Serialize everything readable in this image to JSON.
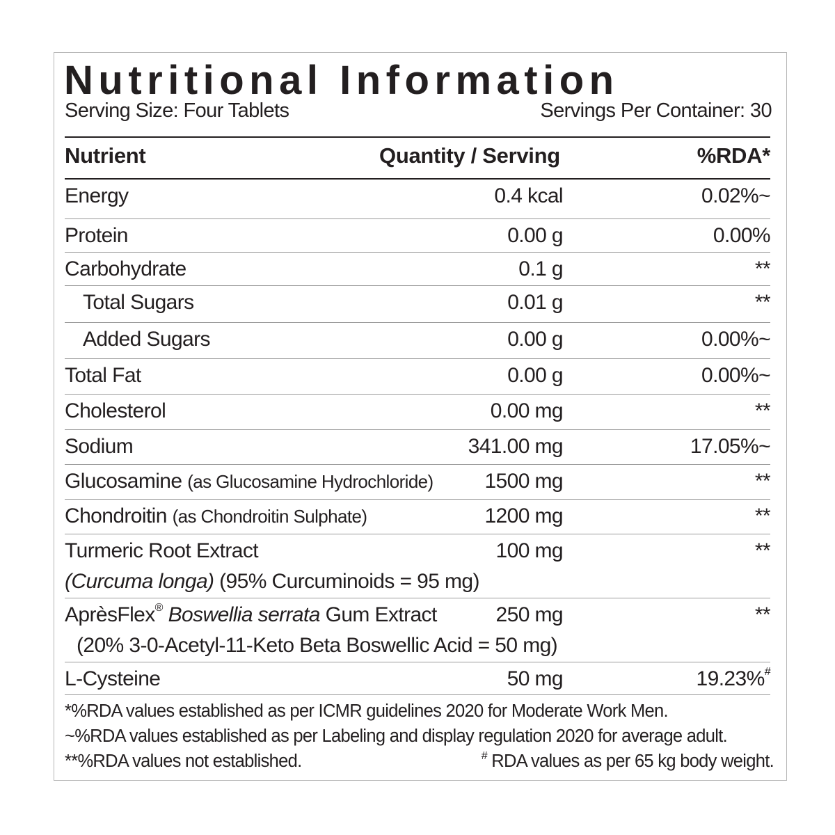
{
  "title": "Nutritional Information",
  "serving_size": "Serving Size: Four Tablets",
  "servings_per_container": "Servings Per Container: 30",
  "table": {
    "headers": [
      "Nutrient",
      "Quantity / Serving",
      "%RDA*"
    ],
    "rows": [
      {
        "nutrient": "Energy",
        "quantity": "0.4 kcal",
        "rda": "0.02%~"
      },
      {
        "nutrient": "Protein",
        "quantity": "0.00 g",
        "rda": "0.00%"
      },
      {
        "nutrient": "Carbohydrate",
        "quantity": "0.1 g",
        "rda": "**"
      },
      {
        "nutrient": "Total Sugars",
        "quantity": "0.01 g",
        "rda": "**"
      },
      {
        "nutrient": "Added Sugars",
        "quantity": "0.00 g",
        "rda": "0.00%~"
      },
      {
        "nutrient": "Total Fat",
        "quantity": "0.00 g",
        "rda": "0.00%~"
      },
      {
        "nutrient": "Cholesterol",
        "quantity": "0.00 mg",
        "rda": "**"
      },
      {
        "nutrient": "Sodium",
        "quantity": "341.00 mg",
        "rda": "17.05%~"
      },
      {
        "nutrient": "Glucosamine",
        "note": "(as Glucosamine Hydrochloride)",
        "quantity": "1500 mg",
        "rda": "**"
      },
      {
        "nutrient": "Chondroitin",
        "note": "(as Chondroitin Sulphate)",
        "quantity": "1200 mg",
        "rda": "**"
      },
      {
        "nutrient": "Turmeric Root Extract",
        "species": "(Curcuma longa)",
        "detail": "(95% Curcuminoids = 95 mg)",
        "quantity": "100 mg",
        "rda": "**"
      },
      {
        "nutrient": "AprèsFlex",
        "mark": "®",
        "species": "Boswellia serrata",
        "nutrient_suffix": "Gum Extract",
        "detail": "(20% 3-0-Acetyl-11-Keto Beta Boswellic Acid = 50 mg)",
        "quantity": "250 mg",
        "rda": "**"
      },
      {
        "nutrient": "L-Cysteine",
        "quantity": "50 mg",
        "rda": "19.23%",
        "rda_mark": "#"
      }
    ]
  },
  "footnotes": [
    "*%RDA values established as per ICMR guidelines 2020 for Moderate Work Men.",
    "~%RDA values established as per Labeling and display regulation 2020 for average adult.",
    "**%RDA values not established."
  ],
  "footnote_body_weight": {
    "mark": "#",
    "text": " RDA values as per 65 kg body weight."
  }
}
